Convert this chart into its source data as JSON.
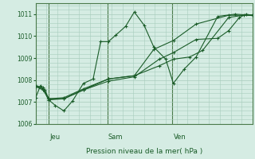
{
  "xlabel": "Pression niveau de la mer( hPa )",
  "bg_color": "#d5ece3",
  "grid_color": "#a8ccbc",
  "line_color": "#1a5c28",
  "spine_color": "#4a7a4a",
  "ylim": [
    1006,
    1011.5
  ],
  "yticks": [
    1006,
    1007,
    1008,
    1009,
    1010,
    1011
  ],
  "xtick_labels": [
    "Jeu",
    "Sam",
    "Ven"
  ],
  "xtick_positions": [
    0.06,
    0.33,
    0.63
  ],
  "series": [
    {
      "x": [
        0.0,
        0.022,
        0.042,
        0.06,
        0.09,
        0.13,
        0.17,
        0.22,
        0.265,
        0.3,
        0.335,
        0.37,
        0.415,
        0.455,
        0.5,
        0.545,
        0.6,
        0.635,
        0.685,
        0.74,
        0.84,
        0.92,
        1.0
      ],
      "y": [
        1007.2,
        1007.75,
        1007.5,
        1007.1,
        1006.85,
        1006.6,
        1007.05,
        1007.85,
        1008.05,
        1009.75,
        1009.75,
        1010.05,
        1010.45,
        1011.1,
        1010.5,
        1009.5,
        1008.95,
        1007.85,
        1008.5,
        1009.05,
        1010.9,
        1011.0,
        1010.95
      ]
    },
    {
      "x": [
        0.0,
        0.042,
        0.06,
        0.13,
        0.22,
        0.335,
        0.455,
        0.545,
        0.635,
        0.74,
        0.89,
        1.0
      ],
      "y": [
        1007.75,
        1007.55,
        1007.15,
        1007.15,
        1007.55,
        1008.05,
        1008.2,
        1009.4,
        1009.8,
        1010.55,
        1010.95,
        1010.95
      ]
    },
    {
      "x": [
        0.0,
        0.035,
        0.06,
        0.13,
        0.22,
        0.335,
        0.455,
        0.57,
        0.635,
        0.74,
        0.84,
        0.89,
        0.94,
        0.97,
        1.0
      ],
      "y": [
        1007.7,
        1007.55,
        1007.1,
        1007.15,
        1007.55,
        1007.95,
        1008.15,
        1008.95,
        1009.25,
        1009.85,
        1009.9,
        1010.25,
        1010.85,
        1011.0,
        1010.95
      ]
    },
    {
      "x": [
        0.0,
        0.035,
        0.06,
        0.13,
        0.22,
        0.335,
        0.455,
        0.57,
        0.635,
        0.71,
        0.77,
        0.89,
        0.96,
        1.0
      ],
      "y": [
        1007.75,
        1007.65,
        1007.15,
        1007.2,
        1007.6,
        1008.05,
        1008.2,
        1008.65,
        1008.95,
        1009.05,
        1009.35,
        1010.85,
        1010.95,
        1010.95
      ]
    }
  ]
}
